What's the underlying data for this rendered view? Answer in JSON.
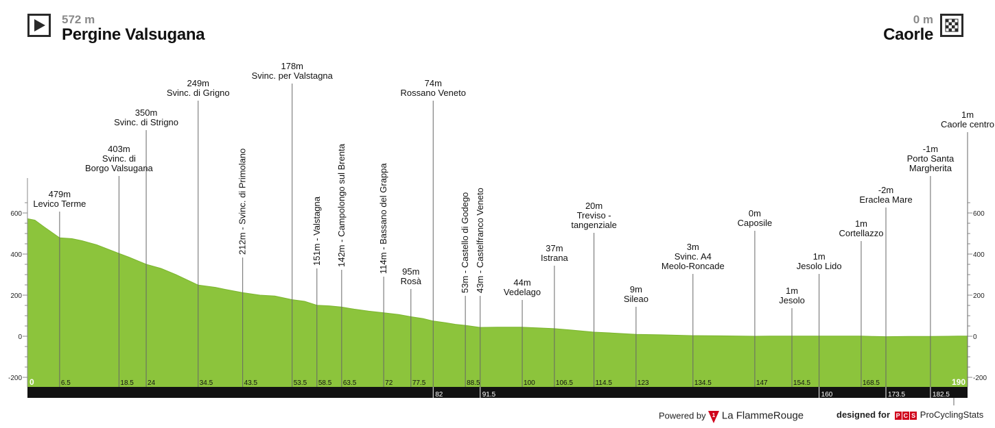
{
  "start": {
    "elevation": "572 m",
    "name": "Pergine Valsugana"
  },
  "finish": {
    "elevation": "0 m",
    "name": "Caorle"
  },
  "icons": {
    "start": "play-icon",
    "finish": "checkered-flag-icon"
  },
  "footer": {
    "powered": "Powered by",
    "brand": "La FlammeRouge",
    "designed": "designed for",
    "pcs": "ProCyclingStats",
    "pcs_badge": [
      "P",
      "C",
      "S"
    ]
  },
  "colors": {
    "fill": "#8cc43c",
    "line": "#6a6a6a",
    "bar": "#121212",
    "grid": "#888888"
  },
  "chart_data": {
    "type": "area",
    "title": "",
    "xlabel": "",
    "ylabel": "",
    "xlim": [
      0,
      190
    ],
    "ylim": [
      -200,
      600
    ],
    "yticks": [
      -200,
      0,
      200,
      400,
      600
    ],
    "profile": [
      [
        0,
        572
      ],
      [
        1.5,
        565
      ],
      [
        3.5,
        530
      ],
      [
        6.5,
        479
      ],
      [
        9,
        475
      ],
      [
        11,
        465
      ],
      [
        14,
        445
      ],
      [
        18.5,
        403
      ],
      [
        20.5,
        385
      ],
      [
        24,
        350
      ],
      [
        27,
        330
      ],
      [
        30,
        300
      ],
      [
        34.5,
        249
      ],
      [
        38,
        238
      ],
      [
        40,
        228
      ],
      [
        43.5,
        212
      ],
      [
        47,
        200
      ],
      [
        50,
        196
      ],
      [
        53.5,
        178
      ],
      [
        56,
        170
      ],
      [
        58.5,
        151
      ],
      [
        61,
        148
      ],
      [
        63.5,
        142
      ],
      [
        66,
        132
      ],
      [
        69,
        122
      ],
      [
        72,
        114
      ],
      [
        75,
        106
      ],
      [
        77.5,
        95
      ],
      [
        80,
        86
      ],
      [
        82,
        74
      ],
      [
        84.5,
        66
      ],
      [
        86.5,
        58
      ],
      [
        88.5,
        53
      ],
      [
        91.5,
        43
      ],
      [
        95,
        44
      ],
      [
        100,
        44
      ],
      [
        103,
        41
      ],
      [
        106.5,
        37
      ],
      [
        110,
        30
      ],
      [
        114.5,
        20
      ],
      [
        118,
        16
      ],
      [
        123,
        9
      ],
      [
        128,
        7
      ],
      [
        134.5,
        3
      ],
      [
        140,
        2
      ],
      [
        147,
        0
      ],
      [
        150,
        1
      ],
      [
        154.5,
        1
      ],
      [
        157,
        1
      ],
      [
        160,
        1
      ],
      [
        165,
        1
      ],
      [
        168.5,
        1
      ],
      [
        171,
        -1
      ],
      [
        173.5,
        -2
      ],
      [
        178,
        -1
      ],
      [
        182.5,
        -1
      ],
      [
        186,
        0
      ],
      [
        188,
        1
      ],
      [
        190,
        1
      ]
    ],
    "points": [
      {
        "km": 6.5,
        "elev": "479m",
        "name": "Levico Terme",
        "orient": "h"
      },
      {
        "km": 18.5,
        "elev": "403m",
        "name": "Svinc. di\nBorgo Valsugana",
        "orient": "h"
      },
      {
        "km": 24,
        "elev": "350m",
        "name": "Svinc. di Strigno",
        "orient": "h"
      },
      {
        "km": 34.5,
        "elev": "249m",
        "name": "Svinc. di Grigno",
        "orient": "h"
      },
      {
        "km": 43.5,
        "elev": "212m",
        "name": "Svinc. di Primolano",
        "orient": "v"
      },
      {
        "km": 53.5,
        "elev": "178m",
        "name": "Svinc. per Valstagna",
        "orient": "h"
      },
      {
        "km": 58.5,
        "elev": "151m",
        "name": "Valstagna",
        "orient": "v"
      },
      {
        "km": 63.5,
        "elev": "142m",
        "name": "Campolongo sul Brenta",
        "orient": "v"
      },
      {
        "km": 72,
        "elev": "114m",
        "name": "Bassano del Grappa",
        "orient": "v"
      },
      {
        "km": 77.5,
        "elev": "95m",
        "name": "Rosà",
        "orient": "h"
      },
      {
        "km": 82,
        "elev": "74m",
        "name": "Rossano Veneto",
        "orient": "h"
      },
      {
        "km": 88.5,
        "elev": "53m",
        "name": "Castello di Godego",
        "orient": "v"
      },
      {
        "km": 91.5,
        "elev": "43m",
        "name": "Castelfranco Veneto",
        "orient": "v"
      },
      {
        "km": 100,
        "elev": "44m",
        "name": "Vedelago",
        "orient": "h"
      },
      {
        "km": 106.5,
        "elev": "37m",
        "name": "Istrana",
        "orient": "h"
      },
      {
        "km": 114.5,
        "elev": "20m",
        "name": "Treviso -\ntangenziale",
        "orient": "h"
      },
      {
        "km": 123,
        "elev": "9m",
        "name": "Sileao",
        "orient": "h"
      },
      {
        "km": 134.5,
        "elev": "3m",
        "name": "Svinc. A4\nMeolo-Roncade",
        "orient": "h"
      },
      {
        "km": 147,
        "elev": "0m",
        "name": "Caposile",
        "orient": "h"
      },
      {
        "km": 154.5,
        "elev": "1m",
        "name": "Jesolo",
        "orient": "h"
      },
      {
        "km": 160,
        "elev": "1m",
        "name": "Jesolo Lido",
        "orient": "h"
      },
      {
        "km": 168.5,
        "elev": "1m",
        "name": "Cortellazzo",
        "orient": "h"
      },
      {
        "km": 173.5,
        "elev": "-2m",
        "name": "Eraclea Mare",
        "orient": "h"
      },
      {
        "km": 182.5,
        "elev": "-1m",
        "name": "Porto Santa\nMargherita",
        "orient": "h"
      },
      {
        "km": 190,
        "elev": "1m",
        "name": "Caorle centro",
        "orient": "h"
      }
    ],
    "km_labels": [
      {
        "km": 0,
        "text": "0",
        "row": "main",
        "style": "end"
      },
      {
        "km": 6.5,
        "text": "6.5",
        "row": "main"
      },
      {
        "km": 18.5,
        "text": "18.5",
        "row": "main"
      },
      {
        "km": 24,
        "text": "24",
        "row": "main"
      },
      {
        "km": 34.5,
        "text": "34.5",
        "row": "main"
      },
      {
        "km": 43.5,
        "text": "43.5",
        "row": "main"
      },
      {
        "km": 53.5,
        "text": "53.5",
        "row": "main"
      },
      {
        "km": 58.5,
        "text": "58.5",
        "row": "main"
      },
      {
        "km": 63.5,
        "text": "63.5",
        "row": "main"
      },
      {
        "km": 72,
        "text": "72",
        "row": "main"
      },
      {
        "km": 77.5,
        "text": "77.5",
        "row": "main"
      },
      {
        "km": 82,
        "text": "82",
        "row": "bar"
      },
      {
        "km": 88.5,
        "text": "88.5",
        "row": "main"
      },
      {
        "km": 91.5,
        "text": "91.5",
        "row": "bar"
      },
      {
        "km": 100,
        "text": "100",
        "row": "main"
      },
      {
        "km": 106.5,
        "text": "106.5",
        "row": "main"
      },
      {
        "km": 114.5,
        "text": "114.5",
        "row": "main"
      },
      {
        "km": 123,
        "text": "123",
        "row": "main"
      },
      {
        "km": 134.5,
        "text": "134.5",
        "row": "main"
      },
      {
        "km": 147,
        "text": "147",
        "row": "main"
      },
      {
        "km": 154.5,
        "text": "154.5",
        "row": "main"
      },
      {
        "km": 160,
        "text": "160",
        "row": "bar"
      },
      {
        "km": 168.5,
        "text": "168.5",
        "row": "main"
      },
      {
        "km": 173.5,
        "text": "173.5",
        "row": "bar"
      },
      {
        "km": 182.5,
        "text": "182.5",
        "row": "bar"
      },
      {
        "km": 190,
        "text": "190",
        "row": "main",
        "style": "end"
      }
    ]
  }
}
